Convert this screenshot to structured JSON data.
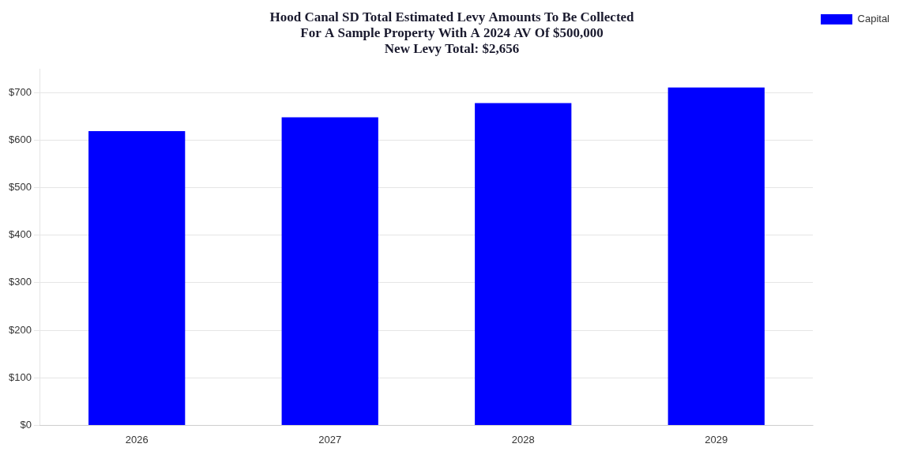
{
  "chart_data": {
    "type": "bar",
    "title": [
      "Hood Canal SD Total Estimated Levy Amounts To Be Collected",
      "For A Sample Property With A 2024 AV Of $500,000",
      "New Levy Total: $2,656"
    ],
    "categories": [
      "2026",
      "2027",
      "2028",
      "2029"
    ],
    "series": [
      {
        "name": "Capital",
        "color": "#0000ff",
        "values": [
          619,
          648,
          678,
          711
        ]
      }
    ],
    "ylim": [
      0,
      750
    ],
    "yticks": [
      {
        "value": 0,
        "label": "$0"
      },
      {
        "value": 100,
        "label": "$100"
      },
      {
        "value": 200,
        "label": "$200"
      },
      {
        "value": 300,
        "label": "$300"
      },
      {
        "value": 400,
        "label": "$400"
      },
      {
        "value": 500,
        "label": "$500"
      },
      {
        "value": 600,
        "label": "$600"
      },
      {
        "value": 700,
        "label": "$700"
      }
    ],
    "grid": true,
    "legend": "right"
  }
}
